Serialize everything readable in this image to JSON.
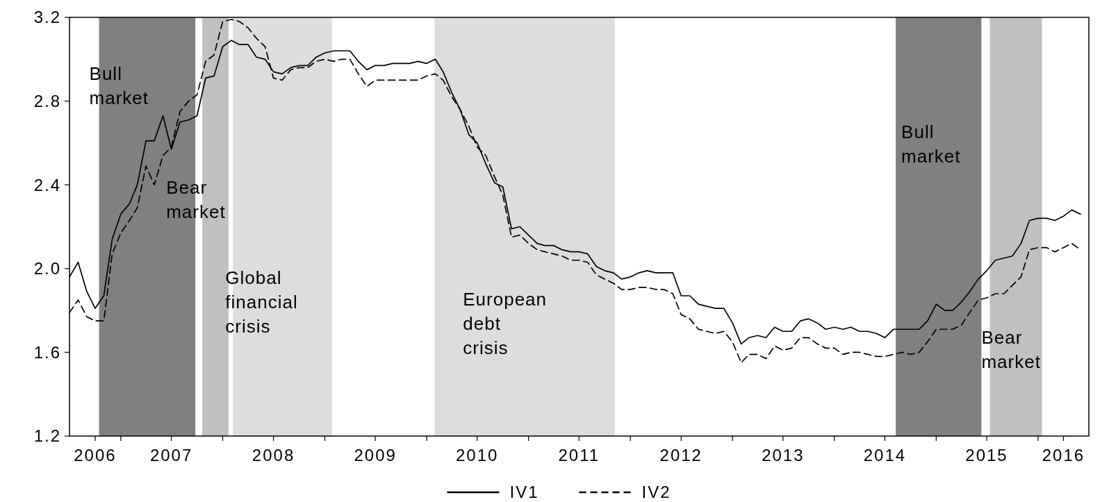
{
  "chart_data": {
    "type": "line",
    "x": [
      "2006-07",
      "2006-08",
      "2006-09",
      "2006-10",
      "2006-11",
      "2006-12",
      "2007-01",
      "2007-02",
      "2007-03",
      "2007-04",
      "2007-05",
      "2007-06",
      "2007-07",
      "2007-08",
      "2007-09",
      "2007-10",
      "2007-11",
      "2007-12",
      "2008-01",
      "2008-02",
      "2008-03",
      "2008-04",
      "2008-05",
      "2008-06",
      "2008-07",
      "2008-08",
      "2008-09",
      "2008-10",
      "2008-11",
      "2008-12",
      "2009-01",
      "2009-02",
      "2009-03",
      "2009-04",
      "2009-05",
      "2009-06",
      "2009-07",
      "2009-08",
      "2009-09",
      "2009-10",
      "2009-11",
      "2009-12",
      "2010-01",
      "2010-02",
      "2010-03",
      "2010-04",
      "2010-05",
      "2010-06",
      "2010-07",
      "2010-08",
      "2010-09",
      "2010-10",
      "2010-11",
      "2010-12",
      "2011-01",
      "2011-02",
      "2011-03",
      "2011-04",
      "2011-05",
      "2011-06",
      "2011-07",
      "2011-08",
      "2011-09",
      "2011-10",
      "2011-11",
      "2011-12",
      "2012-01",
      "2012-02",
      "2012-03",
      "2012-04",
      "2012-05",
      "2012-06",
      "2012-07",
      "2012-08",
      "2012-09",
      "2012-10",
      "2012-11",
      "2012-12",
      "2013-01",
      "2013-02",
      "2013-03",
      "2013-04",
      "2013-05",
      "2013-06",
      "2013-07",
      "2013-08",
      "2013-09",
      "2013-10",
      "2013-11",
      "2013-12",
      "2014-01",
      "2014-02",
      "2014-03",
      "2014-04",
      "2014-05",
      "2014-06",
      "2014-07",
      "2014-08",
      "2014-09",
      "2014-10",
      "2014-11",
      "2014-12",
      "2015-01",
      "2015-02",
      "2015-03",
      "2015-04",
      "2015-05",
      "2015-06",
      "2015-07",
      "2015-08",
      "2015-09",
      "2015-10",
      "2015-11",
      "2015-12",
      "2016-01",
      "2016-02",
      "2016-03",
      "2016-04",
      "2016-05",
      "2016-06"
    ],
    "series": [
      {
        "name": "IV1",
        "color": "#000000",
        "line_style": "solid",
        "values": [
          1.96,
          2.03,
          1.89,
          1.81,
          1.87,
          2.14,
          2.26,
          2.31,
          2.4,
          2.61,
          2.61,
          2.73,
          2.57,
          2.7,
          2.71,
          2.73,
          2.91,
          2.92,
          3.06,
          3.09,
          3.07,
          3.07,
          3.01,
          3.0,
          2.94,
          2.93,
          2.96,
          2.97,
          2.97,
          3.01,
          3.03,
          3.04,
          3.04,
          3.04,
          2.99,
          2.95,
          2.97,
          2.97,
          2.98,
          2.98,
          2.98,
          2.99,
          2.98,
          3.0,
          2.94,
          2.84,
          2.76,
          2.64,
          2.6,
          2.5,
          2.41,
          2.39,
          2.19,
          2.2,
          2.16,
          2.12,
          2.11,
          2.11,
          2.09,
          2.08,
          2.08,
          2.07,
          2.01,
          1.99,
          1.98,
          1.95,
          1.96,
          1.98,
          1.99,
          1.98,
          1.98,
          1.98,
          1.87,
          1.87,
          1.83,
          1.82,
          1.81,
          1.81,
          1.74,
          1.64,
          1.67,
          1.68,
          1.67,
          1.72,
          1.7,
          1.7,
          1.75,
          1.76,
          1.74,
          1.71,
          1.72,
          1.71,
          1.72,
          1.7,
          1.7,
          1.69,
          1.67,
          1.71,
          1.71,
          1.71,
          1.71,
          1.75,
          1.83,
          1.8,
          1.8,
          1.84,
          1.89,
          1.95,
          1.99,
          2.04,
          2.05,
          2.06,
          2.12,
          2.23,
          2.24,
          2.24,
          2.23,
          2.25,
          2.28,
          2.26
        ]
      },
      {
        "name": "IV2",
        "color": "#000000",
        "line_style": "dashed",
        "values": [
          1.79,
          1.85,
          1.77,
          1.75,
          1.75,
          2.07,
          2.17,
          2.23,
          2.29,
          2.49,
          2.4,
          2.54,
          2.58,
          2.75,
          2.8,
          2.83,
          2.99,
          3.02,
          3.18,
          3.19,
          3.18,
          3.15,
          3.1,
          3.06,
          2.91,
          2.9,
          2.95,
          2.96,
          2.96,
          2.99,
          3.0,
          2.99,
          3.0,
          3.0,
          2.93,
          2.87,
          2.9,
          2.9,
          2.9,
          2.9,
          2.9,
          2.9,
          2.92,
          2.93,
          2.9,
          2.82,
          2.76,
          2.68,
          2.58,
          2.54,
          2.44,
          2.35,
          2.15,
          2.16,
          2.12,
          2.09,
          2.08,
          2.07,
          2.06,
          2.04,
          2.04,
          2.03,
          1.97,
          1.95,
          1.93,
          1.9,
          1.9,
          1.91,
          1.91,
          1.9,
          1.9,
          1.88,
          1.78,
          1.76,
          1.71,
          1.7,
          1.69,
          1.7,
          1.65,
          1.55,
          1.59,
          1.59,
          1.57,
          1.63,
          1.61,
          1.62,
          1.67,
          1.67,
          1.64,
          1.62,
          1.62,
          1.59,
          1.6,
          1.6,
          1.59,
          1.58,
          1.58,
          1.59,
          1.6,
          1.59,
          1.6,
          1.65,
          1.71,
          1.71,
          1.71,
          1.73,
          1.79,
          1.85,
          1.86,
          1.88,
          1.88,
          1.92,
          1.96,
          2.09,
          2.1,
          2.1,
          2.08,
          2.1,
          2.12,
          2.09
        ]
      }
    ],
    "xlim": [
      "2006-07",
      "2016-07"
    ],
    "xticks": [
      {
        "value": "2006-10",
        "label": "2006"
      },
      {
        "value": "2007-01",
        "label": null
      },
      {
        "value": "2007-07",
        "label": "2007"
      },
      {
        "value": "2008-01",
        "label": null
      },
      {
        "value": "2008-07",
        "label": "2008"
      },
      {
        "value": "2009-01",
        "label": null
      },
      {
        "value": "2009-07",
        "label": "2009"
      },
      {
        "value": "2010-01",
        "label": null
      },
      {
        "value": "2010-07",
        "label": "2010"
      },
      {
        "value": "2011-01",
        "label": null
      },
      {
        "value": "2011-07",
        "label": "2011"
      },
      {
        "value": "2012-01",
        "label": null
      },
      {
        "value": "2012-07",
        "label": "2012"
      },
      {
        "value": "2013-01",
        "label": null
      },
      {
        "value": "2013-07",
        "label": "2013"
      },
      {
        "value": "2014-01",
        "label": null
      },
      {
        "value": "2014-07",
        "label": "2014"
      },
      {
        "value": "2015-01",
        "label": null
      },
      {
        "value": "2015-07",
        "label": "2015"
      },
      {
        "value": "2016-01",
        "label": null
      },
      {
        "value": "2016-04",
        "label": "2016"
      }
    ],
    "ylim": [
      1.2,
      3.2
    ],
    "yticks": [
      1.2,
      1.6,
      {
        "value": 2,
        "label": "2.0"
      },
      2.4,
      2.8,
      3.2
    ],
    "bands": [
      {
        "axis": "x",
        "from": "2006-10-15",
        "to": "2007-09-25",
        "label": "Bull market",
        "color": "#808080"
      },
      {
        "axis": "x",
        "from": "2007-10-20",
        "to": "2008-01-22",
        "label": "Bear market",
        "color": "#c0c0c0"
      },
      {
        "axis": "x",
        "from": "2008-02-07",
        "to": "2009-01-27",
        "label": "Global financial crisis",
        "color": "#dddddd"
      },
      {
        "axis": "x",
        "from": "2010-01-29",
        "to": "2011-11-06",
        "label": "European debt crisis",
        "color": "#dddddd"
      },
      {
        "axis": "x",
        "from": "2014-08-09",
        "to": "2015-06-12",
        "label": "Bull market",
        "color": "#808080"
      },
      {
        "axis": "x",
        "from": "2015-07-12",
        "to": "2016-01-15",
        "label": "Bear market",
        "color": "#c0c0c0"
      }
    ],
    "legend": "bottom"
  }
}
